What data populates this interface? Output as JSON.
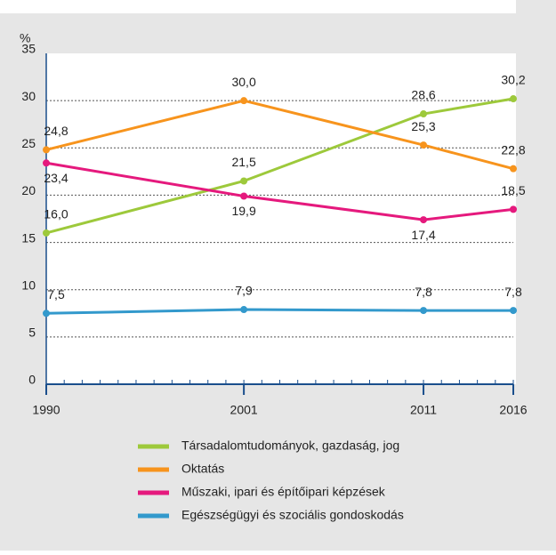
{
  "chart_data": {
    "type": "line",
    "y_unit": "%",
    "x": [
      1990,
      2001,
      2011,
      2016
    ],
    "xlim": [
      1990,
      2016
    ],
    "xticks": [
      1990,
      2001,
      2011,
      2016
    ],
    "ylim": [
      0,
      35
    ],
    "yticks": [
      0,
      5,
      10,
      15,
      20,
      25,
      30,
      35
    ],
    "grid": true,
    "series": [
      {
        "name": "Társadalomtudományok, gazdaság, jog",
        "color": "#9dc93b",
        "values": [
          16.0,
          21.5,
          28.6,
          30.2
        ],
        "value_labels": [
          "16,0",
          "21,5",
          "28,6",
          "30,2"
        ]
      },
      {
        "name": "Oktatás",
        "color": "#f7941d",
        "values": [
          24.8,
          30.0,
          25.3,
          22.8
        ],
        "value_labels": [
          "24,8",
          "30,0",
          "25,3",
          "22,8"
        ]
      },
      {
        "name": "Műszaki, ipari és építőipari képzések",
        "color": "#e5197d",
        "values": [
          23.4,
          19.9,
          17.4,
          18.5
        ],
        "value_labels": [
          "23,4",
          "19,9",
          "17,4",
          "18,5"
        ]
      },
      {
        "name": "Egészségügyi és szociális gondoskodás",
        "color": "#3399cc",
        "values": [
          7.5,
          7.9,
          7.8,
          7.8
        ],
        "value_labels": [
          "7,5",
          "7,9",
          "7,8",
          "7,8"
        ]
      }
    ]
  }
}
